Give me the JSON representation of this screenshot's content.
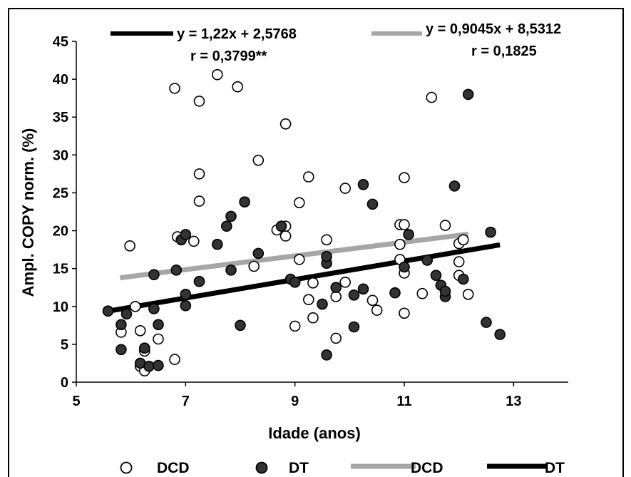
{
  "chart_data": {
    "type": "scatter",
    "xlabel": "Idade (anos)",
    "ylabel": "Ampl. COPY norm. (%)",
    "xlim": [
      5,
      14
    ],
    "ylim": [
      0,
      45
    ],
    "xticks": [
      5,
      7,
      9,
      11,
      13
    ],
    "xtick_labels": [
      "5",
      "7",
      "9",
      "11",
      "13"
    ],
    "yticks": [
      0,
      5,
      10,
      15,
      20,
      25,
      30,
      35,
      40,
      45
    ],
    "grid": false,
    "legend_position": "bottom",
    "series": [
      {
        "name": "DCD",
        "kind": "scatter",
        "marker": "open-circle",
        "color": "#000000",
        "points": [
          [
            5.98,
            18.0
          ],
          [
            6.08,
            10.0
          ],
          [
            5.82,
            6.6
          ],
          [
            6.17,
            6.8
          ],
          [
            6.17,
            2.1
          ],
          [
            6.25,
            1.5
          ],
          [
            6.25,
            4.1
          ],
          [
            6.5,
            5.7
          ],
          [
            6.8,
            3.0
          ],
          [
            6.8,
            38.8
          ],
          [
            6.85,
            19.2
          ],
          [
            7.15,
            18.6
          ],
          [
            7.25,
            37.1
          ],
          [
            7.25,
            27.5
          ],
          [
            7.25,
            23.9
          ],
          [
            7.95,
            39.0
          ],
          [
            7.58,
            40.6
          ],
          [
            8.25,
            15.3
          ],
          [
            8.33,
            29.3
          ],
          [
            8.67,
            20.1
          ],
          [
            8.83,
            34.1
          ],
          [
            8.83,
            19.3
          ],
          [
            8.83,
            20.6
          ],
          [
            9.08,
            16.2
          ],
          [
            9.08,
            23.7
          ],
          [
            9.25,
            27.1
          ],
          [
            9.25,
            10.9
          ],
          [
            9.33,
            13.1
          ],
          [
            9.33,
            8.5
          ],
          [
            9.0,
            7.4
          ],
          [
            9.58,
            18.8
          ],
          [
            9.75,
            11.3
          ],
          [
            9.75,
            5.8
          ],
          [
            9.92,
            25.6
          ],
          [
            9.92,
            13.2
          ],
          [
            10.42,
            10.8
          ],
          [
            10.5,
            9.5
          ],
          [
            10.92,
            20.8
          ],
          [
            10.92,
            18.2
          ],
          [
            10.92,
            16.2
          ],
          [
            11.0,
            27.0
          ],
          [
            11.0,
            20.8
          ],
          [
            11.0,
            14.4
          ],
          [
            11.0,
            9.1
          ],
          [
            11.33,
            11.7
          ],
          [
            11.5,
            37.6
          ],
          [
            11.75,
            20.7
          ],
          [
            12.0,
            18.3
          ],
          [
            12.0,
            15.9
          ],
          [
            12.0,
            14.1
          ],
          [
            12.08,
            18.8
          ],
          [
            12.17,
            11.6
          ]
        ]
      },
      {
        "name": "DT",
        "kind": "scatter",
        "marker": "filled-circle",
        "color": "#333333",
        "points": [
          [
            5.58,
            9.4
          ],
          [
            5.82,
            7.6
          ],
          [
            5.82,
            4.3
          ],
          [
            5.92,
            9.0
          ],
          [
            6.17,
            2.5
          ],
          [
            6.25,
            4.5
          ],
          [
            6.33,
            2.1
          ],
          [
            6.42,
            14.2
          ],
          [
            6.42,
            9.7
          ],
          [
            6.5,
            7.6
          ],
          [
            6.5,
            2.2
          ],
          [
            6.83,
            14.8
          ],
          [
            6.92,
            18.8
          ],
          [
            7.0,
            19.5
          ],
          [
            7.0,
            11.6
          ],
          [
            7.0,
            10.1
          ],
          [
            7.25,
            13.3
          ],
          [
            7.58,
            18.2
          ],
          [
            7.75,
            20.6
          ],
          [
            7.83,
            21.9
          ],
          [
            7.83,
            14.8
          ],
          [
            8.0,
            7.5
          ],
          [
            8.08,
            23.8
          ],
          [
            8.33,
            17.0
          ],
          [
            8.75,
            20.6
          ],
          [
            8.92,
            13.6
          ],
          [
            9.0,
            13.2
          ],
          [
            9.5,
            10.3
          ],
          [
            9.58,
            15.7
          ],
          [
            9.58,
            16.6
          ],
          [
            9.58,
            3.6
          ],
          [
            9.75,
            12.5
          ],
          [
            10.08,
            11.5
          ],
          [
            10.08,
            7.3
          ],
          [
            10.25,
            26.1
          ],
          [
            10.25,
            12.3
          ],
          [
            10.42,
            23.5
          ],
          [
            10.83,
            11.8
          ],
          [
            11.0,
            15.2
          ],
          [
            11.08,
            19.5
          ],
          [
            11.42,
            16.1
          ],
          [
            11.58,
            14.1
          ],
          [
            11.67,
            12.8
          ],
          [
            11.75,
            11.3
          ],
          [
            11.75,
            12.0
          ],
          [
            11.92,
            25.9
          ],
          [
            12.08,
            13.6
          ],
          [
            12.17,
            38.0
          ],
          [
            12.5,
            7.9
          ],
          [
            12.58,
            19.8
          ],
          [
            12.75,
            6.3
          ]
        ]
      },
      {
        "name": "DCD",
        "kind": "line",
        "color": "#a6a6a6",
        "x": [
          5.8,
          12.17
        ],
        "y": [
          13.78,
          19.54
        ]
      },
      {
        "name": "DT",
        "kind": "line",
        "color": "#000000",
        "x": [
          5.58,
          12.75
        ],
        "y": [
          9.38,
          18.13
        ]
      }
    ],
    "annotations": [
      {
        "line1": "y = 1,22x + 2,5768",
        "line2": "r = 0,3799**",
        "swatch_color": "#000000"
      },
      {
        "line1": "y = 0,9045x + 8,5312",
        "line2": "r = 0,1825",
        "swatch_color": "#a6a6a6"
      }
    ]
  }
}
